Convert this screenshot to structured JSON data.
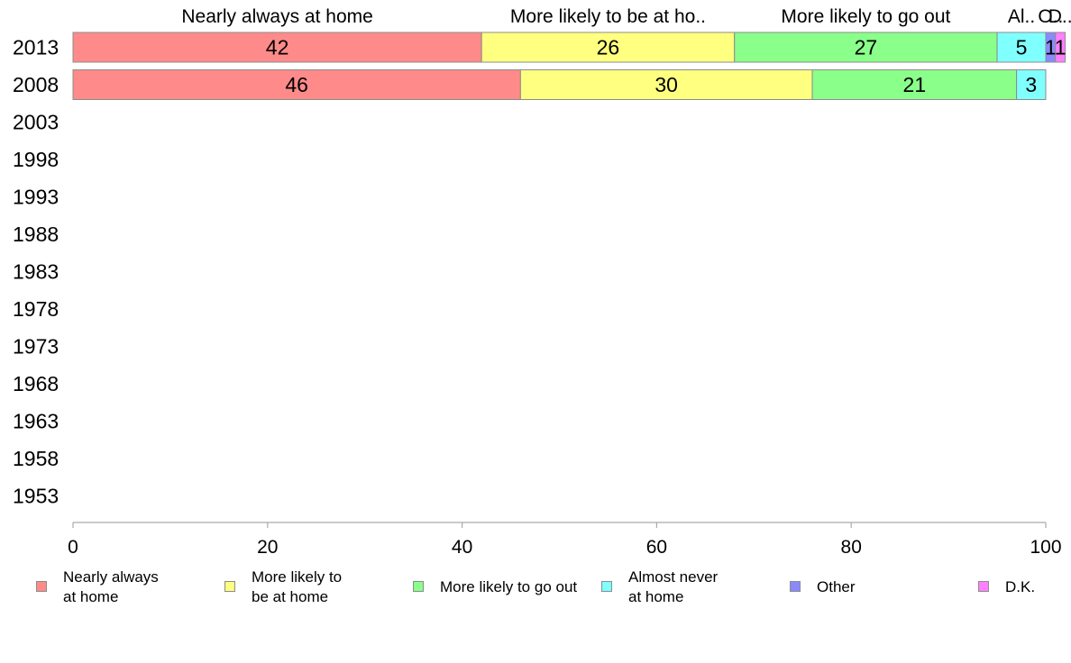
{
  "chart_data": {
    "type": "bar",
    "orientation": "horizontal",
    "stacked": true,
    "categories": [
      "2013",
      "2008",
      "2003",
      "1998",
      "1993",
      "1988",
      "1983",
      "1978",
      "1973",
      "1968",
      "1963",
      "1958",
      "1953"
    ],
    "series": [
      {
        "name": "Nearly always at home",
        "legend_label": "Nearly always\nat home",
        "top_label": "Nearly always at home",
        "color": "#ff8a8a",
        "values": [
          42,
          46,
          null,
          null,
          null,
          null,
          null,
          null,
          null,
          null,
          null,
          null,
          null
        ]
      },
      {
        "name": "More likely to be at home",
        "legend_label": "More likely to\nbe at home",
        "top_label": "More likely to be at ho..",
        "color": "#ffff80",
        "values": [
          26,
          30,
          null,
          null,
          null,
          null,
          null,
          null,
          null,
          null,
          null,
          null,
          null
        ]
      },
      {
        "name": "More likely to go out",
        "legend_label": "More likely to go out",
        "top_label": "More likely to go out",
        "color": "#8aff8a",
        "values": [
          27,
          21,
          null,
          null,
          null,
          null,
          null,
          null,
          null,
          null,
          null,
          null,
          null
        ]
      },
      {
        "name": "Almost never at home",
        "legend_label": "Almost never\nat home",
        "top_label": "Al..",
        "color": "#80ffff",
        "values": [
          5,
          3,
          null,
          null,
          null,
          null,
          null,
          null,
          null,
          null,
          null,
          null,
          null
        ]
      },
      {
        "name": "Other",
        "legend_label": "Other",
        "top_label": "O..",
        "color": "#8a8aff",
        "values": [
          1,
          0,
          null,
          null,
          null,
          null,
          null,
          null,
          null,
          null,
          null,
          null,
          null
        ]
      },
      {
        "name": "D.K.",
        "legend_label": "D.K.",
        "top_label": "D..",
        "color": "#ff80ff",
        "values": [
          1,
          0,
          null,
          null,
          null,
          null,
          null,
          null,
          null,
          null,
          null,
          null,
          null
        ]
      }
    ],
    "xlim": [
      0,
      100
    ],
    "xticks": [
      0,
      20,
      40,
      60,
      80,
      100
    ],
    "title": "",
    "xlabel": "",
    "ylabel": "",
    "grid": false,
    "legend": "bottom"
  }
}
